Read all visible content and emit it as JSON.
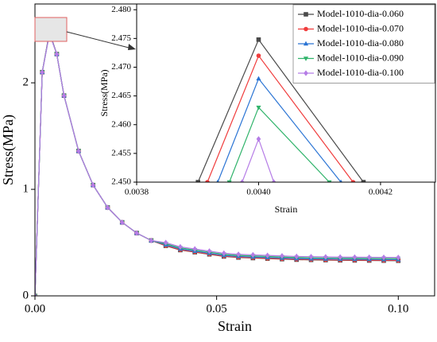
{
  "chart_data": [
    {
      "type": "line",
      "xlabel": "Strain",
      "ylabel": "Stress(MPa)",
      "xlim": [
        0,
        0.11
      ],
      "ylim": [
        0,
        2.74
      ],
      "xticks": [
        {
          "value": 0,
          "label": "0.00"
        },
        0.05,
        {
          "value": 0.1,
          "label": "0.10"
        }
      ],
      "yticks": [
        0,
        1,
        2
      ],
      "x": [
        0,
        0.002,
        0.004,
        0.006,
        0.008,
        0.012,
        0.016,
        0.02,
        0.024,
        0.028,
        0.032,
        0.036,
        0.04,
        0.044,
        0.048,
        0.052,
        0.056,
        0.06,
        0.064,
        0.068,
        0.072,
        0.076,
        0.08,
        0.084,
        0.088,
        0.092,
        0.096,
        0.1
      ],
      "series": [
        {
          "color": "#4a4a4a",
          "marker": "square",
          "values": [
            0,
            2.1,
            2.475,
            2.27,
            1.88,
            1.36,
            1.04,
            0.83,
            0.69,
            0.59,
            0.52,
            0.47,
            0.43,
            0.41,
            0.39,
            0.37,
            0.36,
            0.355,
            0.35,
            0.345,
            0.34,
            0.338,
            0.336,
            0.334,
            0.333,
            0.332,
            0.331,
            0.33
          ]
        },
        {
          "color": "#f03c3c",
          "marker": "circle",
          "values": [
            0,
            2.1,
            2.472,
            2.27,
            1.88,
            1.36,
            1.04,
            0.83,
            0.69,
            0.59,
            0.52,
            0.473,
            0.433,
            0.413,
            0.393,
            0.373,
            0.363,
            0.358,
            0.353,
            0.348,
            0.343,
            0.341,
            0.339,
            0.337,
            0.336,
            0.335,
            0.334,
            0.333
          ]
        },
        {
          "color": "#2a74d4",
          "marker": "triangle",
          "values": [
            0,
            2.1,
            2.468,
            2.27,
            1.88,
            1.36,
            1.04,
            0.83,
            0.69,
            0.59,
            0.52,
            0.48,
            0.44,
            0.42,
            0.4,
            0.38,
            0.37,
            0.365,
            0.36,
            0.355,
            0.35,
            0.348,
            0.346,
            0.344,
            0.343,
            0.342,
            0.341,
            0.34
          ]
        },
        {
          "color": "#2fb36a",
          "marker": "triangle-down",
          "values": [
            0,
            2.1,
            2.463,
            2.27,
            1.88,
            1.36,
            1.04,
            0.83,
            0.69,
            0.59,
            0.52,
            0.49,
            0.45,
            0.43,
            0.41,
            0.39,
            0.38,
            0.375,
            0.37,
            0.365,
            0.36,
            0.358,
            0.356,
            0.354,
            0.353,
            0.352,
            0.351,
            0.35
          ]
        },
        {
          "color": "#b57ce6",
          "marker": "diamond",
          "values": [
            0,
            2.1,
            2.4575,
            2.27,
            1.88,
            1.36,
            1.04,
            0.83,
            0.69,
            0.59,
            0.52,
            0.5,
            0.46,
            0.44,
            0.42,
            0.4,
            0.39,
            0.385,
            0.38,
            0.375,
            0.37,
            0.368,
            0.366,
            0.364,
            0.363,
            0.362,
            0.361,
            0.36
          ]
        }
      ]
    },
    {
      "type": "line",
      "xlabel": "Strain",
      "ylabel": "Stress(MPa)",
      "xlim": [
        0.0038,
        0.00429
      ],
      "ylim": [
        2.45,
        2.481
      ],
      "xticks": [
        0.0038,
        {
          "value": 0.004,
          "label": "0.0040"
        },
        0.0042
      ],
      "yticks": [
        {
          "value": 2.45,
          "label": "2.450"
        },
        2.455,
        {
          "value": 2.46,
          "label": "2.460"
        },
        2.465,
        {
          "value": 2.47,
          "label": "2.470"
        },
        2.475,
        {
          "value": 2.48,
          "label": "2.480"
        }
      ],
      "legend": "upper right",
      "series": [
        {
          "name": "Model-1010-dia-0.060",
          "color": "#4a4a4a",
          "marker": "square",
          "x": [
            0.0039006,
            0.004,
            0.004172
          ],
          "values": [
            2.45,
            2.4748,
            2.45
          ]
        },
        {
          "name": "Model-1010-dia-0.070",
          "color": "#f03c3c",
          "marker": "circle",
          "x": [
            0.003916,
            0.004,
            0.004155
          ],
          "values": [
            2.45,
            2.472,
            2.45
          ]
        },
        {
          "name": "Model-1010-dia-0.080",
          "color": "#2a74d4",
          "marker": "triangle",
          "x": [
            0.003933,
            0.004,
            0.004135
          ],
          "values": [
            2.45,
            2.468,
            2.45
          ]
        },
        {
          "name": "Model-1010-dia-0.090",
          "color": "#2fb36a",
          "marker": "triangle-down",
          "x": [
            0.003952,
            0.004,
            0.004116
          ],
          "values": [
            2.45,
            2.463,
            2.45
          ]
        },
        {
          "name": "Model-1010-dia-0.100",
          "color": "#b57ce6",
          "marker": "diamond",
          "x": [
            0.003973,
            0.004,
            0.004025
          ],
          "values": [
            2.45,
            2.4575,
            2.45
          ]
        }
      ]
    }
  ]
}
